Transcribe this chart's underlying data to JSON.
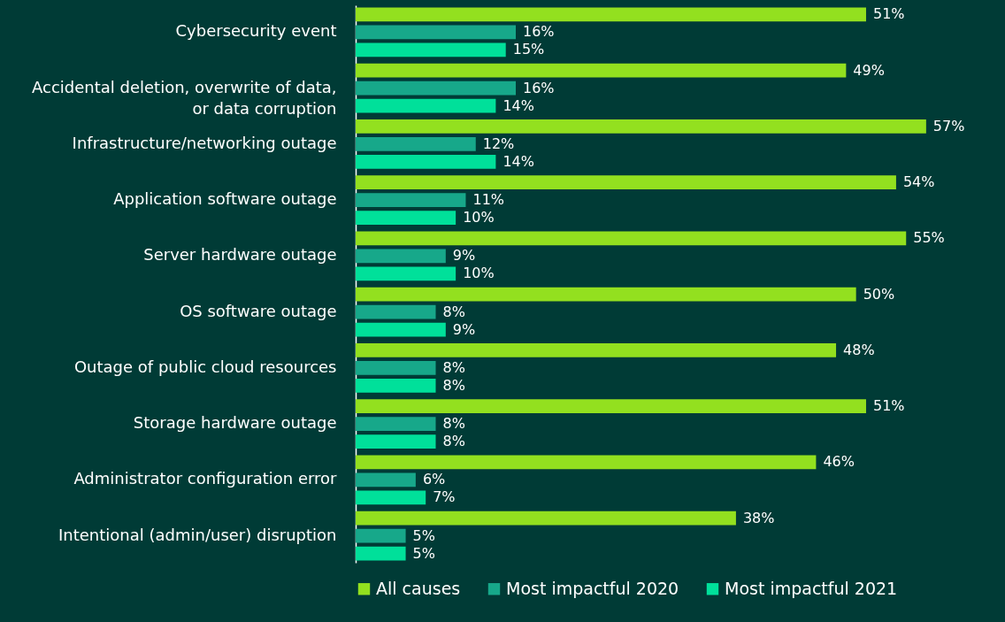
{
  "chart_data": {
    "type": "bar",
    "orientation": "horizontal",
    "legend": "bottom",
    "categories": [
      "Cybersecurity event",
      "Accidental deletion, overwrite of data, or data corruption",
      "Infrastructure/networking outage",
      "Application software outage",
      "Server hardware outage",
      "OS software outage",
      "Outage of public cloud resources",
      "Storage hardware outage",
      "Administrator configuration error",
      "Intentional (admin/user) disruption"
    ],
    "series": [
      {
        "name": "All causes",
        "color": "#93e01f",
        "values": [
          51,
          49,
          57,
          54,
          55,
          50,
          48,
          51,
          46,
          38
        ],
        "value_labels": [
          "51%",
          "49%",
          "57%",
          "54%",
          "55%",
          "50%",
          "48%",
          "51%",
          "46%",
          "38%"
        ]
      },
      {
        "name": "Most impactful 2020",
        "color": "#17a88a",
        "values": [
          16,
          16,
          12,
          11,
          9,
          8,
          8,
          8,
          6,
          5
        ],
        "value_labels": [
          "16%",
          "16%",
          "12%",
          "11%",
          "9%",
          "8%",
          "8%",
          "8%",
          "6%",
          "5%"
        ]
      },
      {
        "name": "Most impactful 2021",
        "color": "#00e09a",
        "values": [
          15,
          14,
          14,
          10,
          10,
          9,
          8,
          8,
          7,
          5
        ],
        "value_labels": [
          "15%",
          "14%",
          "14%",
          "10%",
          "10%",
          "9%",
          "8%",
          "8%",
          "7%",
          "5%"
        ]
      }
    ]
  }
}
